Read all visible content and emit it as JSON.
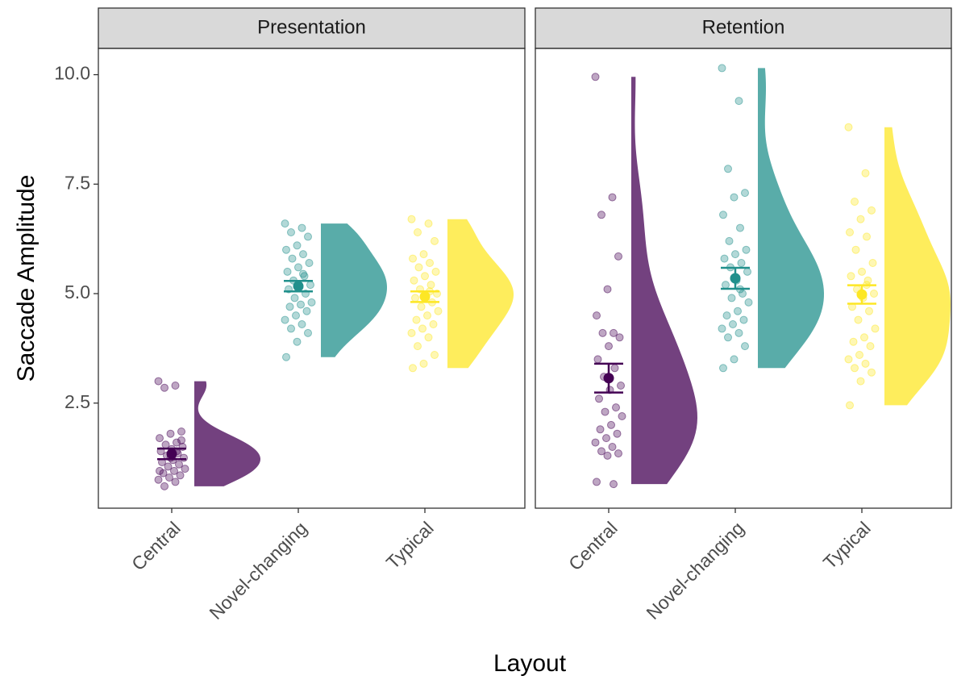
{
  "chart_data": {
    "type": "raincloud",
    "ylabel": "Saccade Amplitude",
    "xlabel": "Layout",
    "categories": [
      "Central",
      "Novel-changing",
      "Typical"
    ],
    "colors": [
      "#440154",
      "#21908c",
      "#fde725"
    ],
    "ylim": [
      0.1,
      10.6
    ],
    "yticks": [
      2.5,
      {
        "value": 5,
        "label": "5.0"
      },
      7.5,
      {
        "value": 10,
        "label": "10.0"
      }
    ],
    "facets": [
      {
        "title": "Presentation",
        "groups": [
          {
            "mean": 1.34,
            "se": 0.12,
            "values": [
              3.0,
              2.9,
              2.85,
              1.85,
              1.8,
              1.7,
              1.6,
              1.55,
              1.5,
              1.45,
              1.4,
              1.35,
              1.3,
              1.25,
              1.2,
              1.15,
              1.1,
              1.05,
              1.0,
              0.95,
              0.9,
              0.85,
              0.8,
              0.75,
              0.7,
              0.6,
              1.65,
              1.25,
              0.95,
              1.4
            ]
          },
          {
            "mean": 5.17,
            "se": 0.12,
            "values": [
              6.6,
              6.5,
              6.4,
              6.3,
              6.1,
              6.0,
              5.9,
              5.8,
              5.7,
              5.6,
              5.5,
              5.4,
              5.3,
              5.2,
              5.15,
              5.1,
              5.0,
              4.9,
              4.8,
              4.75,
              4.7,
              4.6,
              4.5,
              4.4,
              4.3,
              4.2,
              4.1,
              3.9,
              3.55,
              5.45
            ]
          },
          {
            "mean": 4.93,
            "se": 0.12,
            "values": [
              6.7,
              6.6,
              6.4,
              6.2,
              5.9,
              5.8,
              5.7,
              5.6,
              5.5,
              5.4,
              5.3,
              5.2,
              5.1,
              5.0,
              4.95,
              4.9,
              4.8,
              4.7,
              4.6,
              4.5,
              4.4,
              4.3,
              4.2,
              4.1,
              4.0,
              3.8,
              3.6,
              3.4,
              3.3,
              5.05
            ]
          }
        ]
      },
      {
        "title": "Retention",
        "groups": [
          {
            "mean": 3.07,
            "se": 0.33,
            "values": [
              9.95,
              7.2,
              6.8,
              5.85,
              5.1,
              4.5,
              4.1,
              4.1,
              4.0,
              3.8,
              3.5,
              3.3,
              3.1,
              2.9,
              2.8,
              2.6,
              2.4,
              2.3,
              2.2,
              2.0,
              1.9,
              1.8,
              1.7,
              1.6,
              1.5,
              1.4,
              1.35,
              1.3,
              0.7,
              0.65
            ]
          },
          {
            "mean": 5.35,
            "se": 0.24,
            "values": [
              10.15,
              9.4,
              7.85,
              7.3,
              7.2,
              6.8,
              6.5,
              6.2,
              6.0,
              5.9,
              5.8,
              5.7,
              5.6,
              5.5,
              5.3,
              5.2,
              5.0,
              4.9,
              4.8,
              4.6,
              4.5,
              4.4,
              4.3,
              4.2,
              4.1,
              4.0,
              3.8,
              3.5,
              3.3,
              5.1
            ]
          },
          {
            "mean": 4.98,
            "se": 0.21,
            "values": [
              8.8,
              7.75,
              7.1,
              6.9,
              6.7,
              6.4,
              6.3,
              6.0,
              5.7,
              5.5,
              5.4,
              5.3,
              5.1,
              5.0,
              4.9,
              4.7,
              4.6,
              4.4,
              4.2,
              4.0,
              3.9,
              3.8,
              3.6,
              3.5,
              3.4,
              3.3,
              3.2,
              3.0,
              2.45,
              5.2
            ]
          }
        ]
      }
    ]
  }
}
